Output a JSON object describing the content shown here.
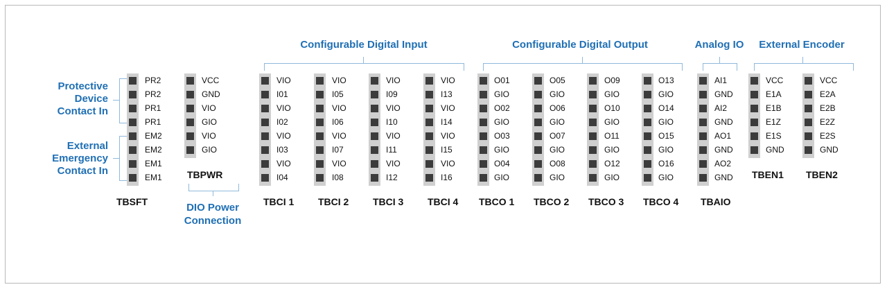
{
  "blocks": [
    {
      "name": "TBSFT",
      "pins": [
        "PR2",
        "PR2",
        "PR1",
        "PR1",
        "EM2",
        "EM2",
        "EM1",
        "EM1"
      ]
    },
    {
      "name": "TBPWR",
      "pins": [
        "VCC",
        "GND",
        "VIO",
        "GIO",
        "VIO",
        "GIO"
      ]
    },
    {
      "name": "TBCI 1",
      "pins": [
        "VIO",
        "I01",
        "VIO",
        "I02",
        "VIO",
        "I03",
        "VIO",
        "I04"
      ]
    },
    {
      "name": "TBCI 2",
      "pins": [
        "VIO",
        "I05",
        "VIO",
        "I06",
        "VIO",
        "I07",
        "VIO",
        "I08"
      ]
    },
    {
      "name": "TBCI 3",
      "pins": [
        "VIO",
        "I09",
        "VIO",
        "I10",
        "VIO",
        "I11",
        "VIO",
        "I12"
      ]
    },
    {
      "name": "TBCI 4",
      "pins": [
        "VIO",
        "I13",
        "VIO",
        "I14",
        "VIO",
        "I15",
        "VIO",
        "I16"
      ]
    },
    {
      "name": "TBCO 1",
      "pins": [
        "O01",
        "GIO",
        "O02",
        "GIO",
        "O03",
        "GIO",
        "O04",
        "GIO"
      ]
    },
    {
      "name": "TBCO 2",
      "pins": [
        "O05",
        "GIO",
        "O06",
        "GIO",
        "O07",
        "GIO",
        "O08",
        "GIO"
      ]
    },
    {
      "name": "TBCO 3",
      "pins": [
        "O09",
        "GIO",
        "O10",
        "GIO",
        "O11",
        "GIO",
        "O12",
        "GIO"
      ]
    },
    {
      "name": "TBCO 4",
      "pins": [
        "O13",
        "GIO",
        "O14",
        "GIO",
        "O15",
        "GIO",
        "O16",
        "GIO"
      ]
    },
    {
      "name": "TBAIO",
      "pins": [
        "AI1",
        "GND",
        "AI2",
        "GND",
        "AO1",
        "GND",
        "AO2",
        "GND"
      ]
    },
    {
      "name": "TBEN1",
      "pins": [
        "VCC",
        "E1A",
        "E1B",
        "E1Z",
        "E1S",
        "GND"
      ]
    },
    {
      "name": "TBEN2",
      "pins": [
        "VCC",
        "E2A",
        "E2B",
        "E2Z",
        "E2S",
        "GND"
      ]
    }
  ],
  "groups": {
    "digital_input": "Configurable Digital Input",
    "digital_output": "Configurable Digital Output",
    "analog_io": "Analog IO",
    "external_encoder": "External Encoder",
    "protective": "Protective Device Contact In",
    "emergency": "External Emergency Contact In",
    "dio_power": "DIO Power Connection"
  },
  "colors": {
    "accent": "#1f6fb4",
    "pin": "#3c3c3c",
    "strip": "#cfcfcf"
  }
}
